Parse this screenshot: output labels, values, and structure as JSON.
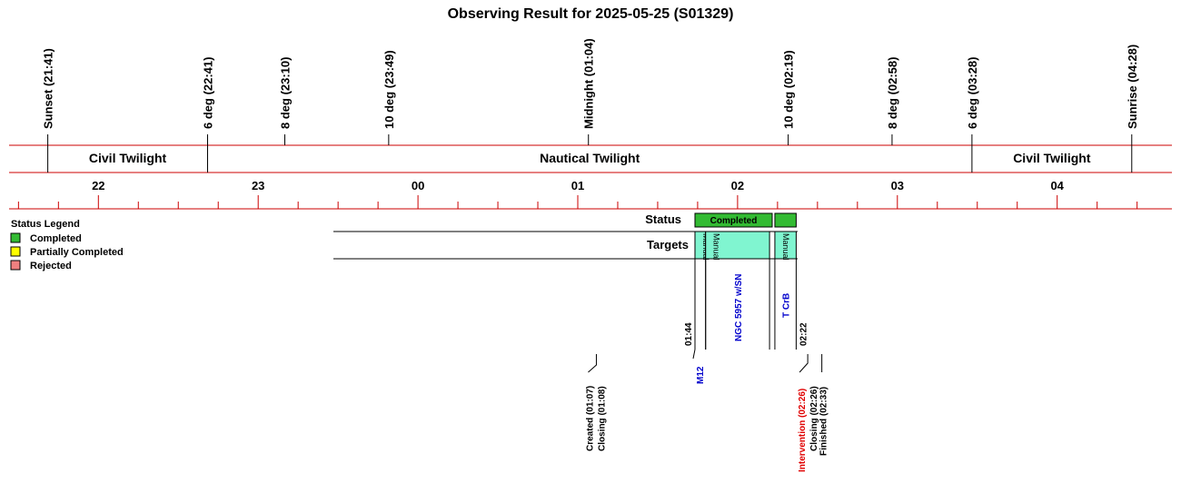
{
  "colors": {
    "red_line": "#cc0000",
    "completed": "#33bb33",
    "partial": "#ffff00",
    "rejected": "#f08080",
    "target_fill": "#80f5d0",
    "target_text": "#0000cc",
    "intervention": "#e00000"
  },
  "chart_data": {
    "type": "table",
    "title": "Observing Result for 2025-05-25 (S01329)",
    "x_range": [
      "21:15",
      "04:42"
    ],
    "hour_ticks": [
      "22",
      "23",
      "00",
      "01",
      "02",
      "03",
      "04"
    ],
    "twilight_markers": [
      {
        "label": "Sunset (21:41)",
        "time": "21:41"
      },
      {
        "label": "6 deg (22:41)",
        "time": "22:41"
      },
      {
        "label": "8 deg (23:10)",
        "time": "23:10"
      },
      {
        "label": "10 deg (23:49)",
        "time": "23:49"
      },
      {
        "label": "Midnight (01:04)",
        "time": "01:04"
      },
      {
        "label": "10 deg (02:19)",
        "time": "02:19"
      },
      {
        "label": "8 deg (02:58)",
        "time": "02:58"
      },
      {
        "label": "6 deg (03:28)",
        "time": "03:28"
      },
      {
        "label": "Sunrise (04:28)",
        "time": "04:28"
      }
    ],
    "twilight_bands": [
      {
        "label": "Civil Twilight",
        "start": "21:41",
        "end": "22:41"
      },
      {
        "label": "Nautical Twilight",
        "start": "22:41",
        "end": "03:28"
      },
      {
        "label": "Civil Twilight",
        "start": "03:28",
        "end": "04:28"
      }
    ],
    "status_row_label": "Status",
    "targets_row_label": "Targets",
    "status_blocks": [
      {
        "start": "01:44",
        "end": "02:13",
        "status": "Completed",
        "label": "Completed"
      },
      {
        "start": "02:14",
        "end": "02:22",
        "status": "Completed",
        "label": ""
      }
    ],
    "targets": [
      {
        "name": "M12",
        "start": "01:44",
        "end": "01:48",
        "mode": "Manual"
      },
      {
        "name": "NGC 5957 w/SN",
        "start": "01:48",
        "end": "02:12",
        "mode": "Manual"
      },
      {
        "name": "T CrB",
        "start": "02:14",
        "end": "02:22",
        "mode": "Manual"
      }
    ],
    "time_marks": [
      {
        "label": "01:44",
        "time": "01:44"
      },
      {
        "label": "02:22",
        "time": "02:22"
      }
    ],
    "events": [
      {
        "label": "Created (01:07)",
        "time": "01:07"
      },
      {
        "label": "Closing (01:08)",
        "time": "01:08"
      },
      {
        "label": "Intervention (02:26)",
        "time": "02:26",
        "highlight": true
      },
      {
        "label": "Closing (02:26)",
        "time": "02:26"
      },
      {
        "label": "Finished (02:33)",
        "time": "02:33"
      }
    ],
    "legend": {
      "title": "Status Legend",
      "items": [
        {
          "label": "Completed",
          "color": "#33bb33"
        },
        {
          "label": "Partially Completed",
          "color": "#ffff00"
        },
        {
          "label": "Rejected",
          "color": "#f08080"
        }
      ]
    }
  }
}
